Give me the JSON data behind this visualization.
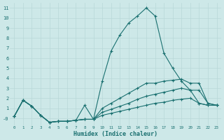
{
  "xlabel": "Humidex (Indice chaleur)",
  "bg_color": "#cde8e8",
  "grid_color": "#b8d8d8",
  "line_color": "#1a7070",
  "xlim": [
    -0.5,
    23.5
  ],
  "ylim": [
    -0.7,
    11.5
  ],
  "xticks": [
    0,
    1,
    2,
    3,
    4,
    5,
    6,
    7,
    8,
    9,
    10,
    11,
    12,
    13,
    14,
    15,
    16,
    17,
    18,
    19,
    20,
    21,
    22,
    23
  ],
  "yticks": [
    0,
    1,
    2,
    3,
    4,
    5,
    6,
    7,
    8,
    9,
    10,
    11
  ],
  "yticklabels": [
    "-0",
    "1",
    "2",
    "3",
    "4",
    "5",
    "6",
    "7",
    "8",
    "9",
    "10",
    "11"
  ],
  "line1_x": [
    0,
    1,
    2,
    3,
    4,
    5,
    6,
    7,
    8,
    9,
    10,
    11,
    12,
    13,
    14,
    15,
    16,
    17,
    18,
    19,
    20,
    21,
    22,
    23
  ],
  "line1_y": [
    0.2,
    1.8,
    1.2,
    0.3,
    -0.4,
    -0.3,
    -0.3,
    -0.2,
    1.3,
    -0.1,
    3.7,
    6.7,
    8.3,
    9.5,
    10.2,
    11.0,
    10.2,
    6.5,
    5.0,
    3.7,
    2.8,
    1.5,
    1.3,
    1.3
  ],
  "line2_x": [
    0,
    1,
    2,
    3,
    4,
    5,
    6,
    7,
    8,
    9,
    10,
    11,
    12,
    13,
    14,
    15,
    16,
    17,
    18,
    19,
    20,
    21,
    22,
    23
  ],
  "line2_y": [
    0.2,
    1.8,
    1.2,
    0.3,
    -0.4,
    -0.3,
    -0.3,
    -0.2,
    -0.1,
    -0.1,
    1.0,
    1.5,
    2.0,
    2.5,
    3.0,
    3.5,
    3.5,
    3.7,
    3.8,
    3.9,
    3.5,
    3.5,
    1.5,
    1.3
  ],
  "line3_x": [
    0,
    1,
    2,
    3,
    4,
    5,
    6,
    7,
    8,
    9,
    10,
    11,
    12,
    13,
    14,
    15,
    16,
    17,
    18,
    19,
    20,
    21,
    22,
    23
  ],
  "line3_y": [
    0.2,
    1.8,
    1.2,
    0.3,
    -0.4,
    -0.3,
    -0.3,
    -0.2,
    -0.1,
    -0.1,
    0.6,
    0.9,
    1.2,
    1.5,
    1.9,
    2.2,
    2.4,
    2.6,
    2.8,
    3.0,
    2.8,
    2.8,
    1.5,
    1.3
  ],
  "line4_x": [
    0,
    1,
    2,
    3,
    4,
    5,
    6,
    7,
    8,
    9,
    10,
    11,
    12,
    13,
    14,
    15,
    16,
    17,
    18,
    19,
    20,
    21,
    22,
    23
  ],
  "line4_y": [
    0.2,
    1.8,
    1.2,
    0.3,
    -0.4,
    -0.3,
    -0.3,
    -0.2,
    -0.1,
    -0.1,
    0.3,
    0.5,
    0.7,
    0.9,
    1.1,
    1.3,
    1.5,
    1.6,
    1.8,
    1.9,
    2.0,
    1.5,
    1.3,
    1.3
  ]
}
